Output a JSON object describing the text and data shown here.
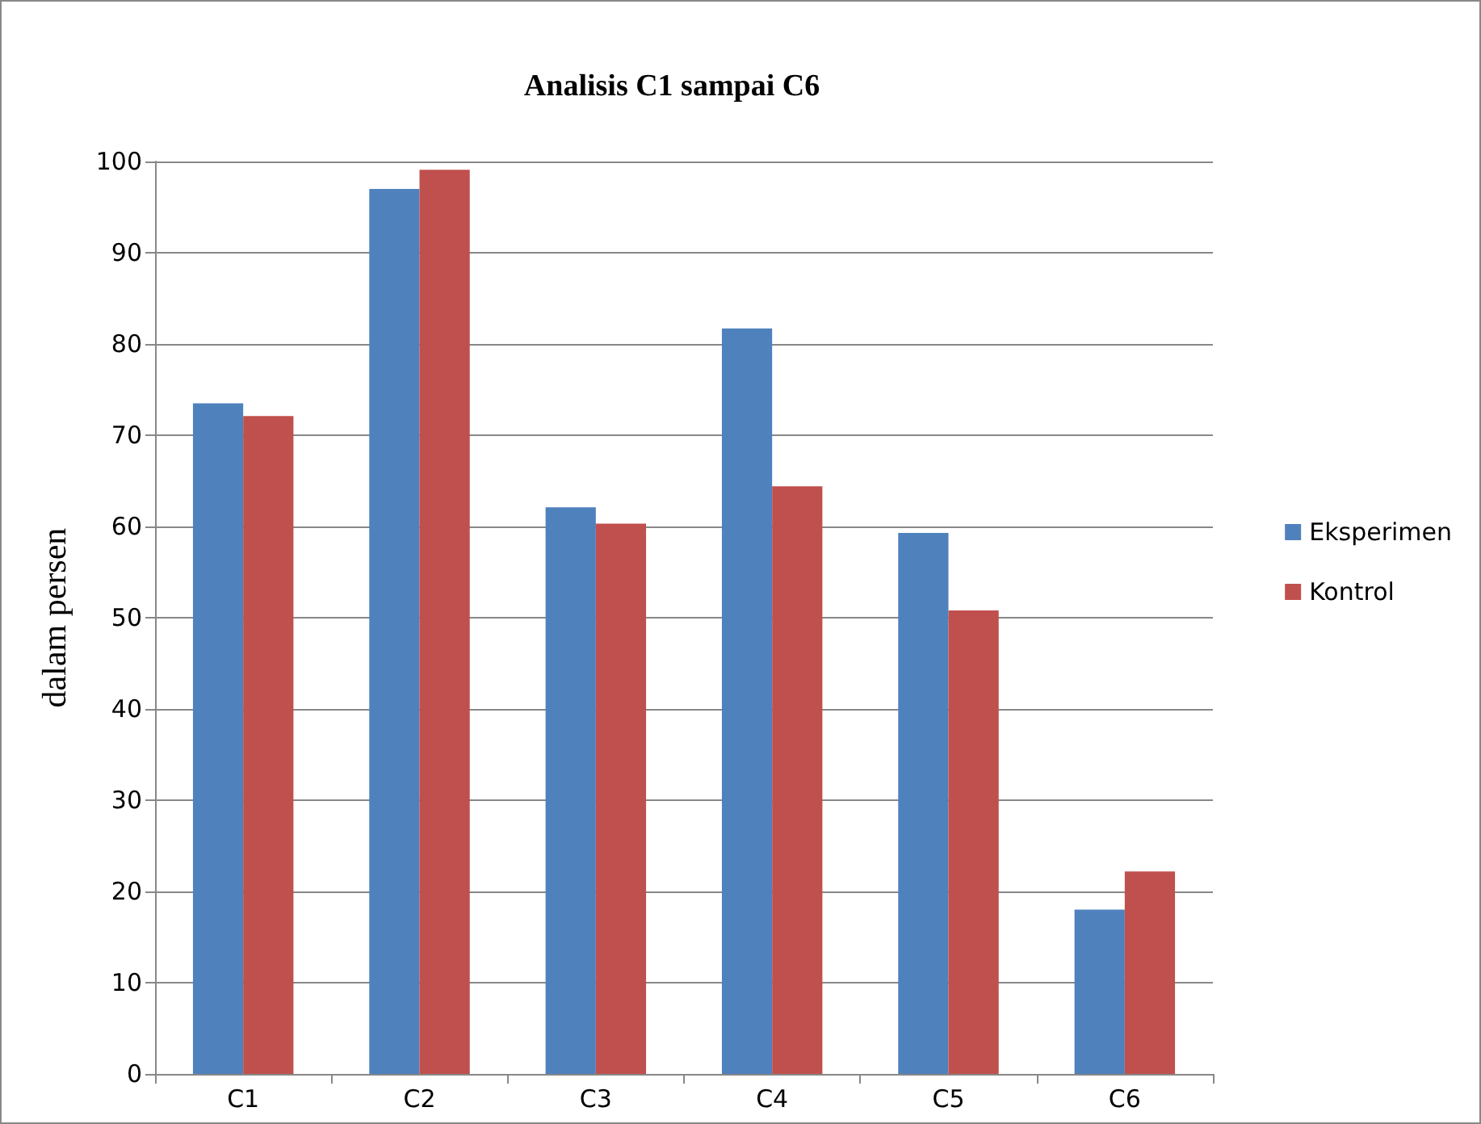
{
  "chart_data": {
    "type": "bar",
    "title": "Analisis C1 sampai C6",
    "ylabel": "dalam persen",
    "categories": [
      "C1",
      "C2",
      "C3",
      "C4",
      "C5",
      "C6"
    ],
    "series": [
      {
        "name": "Eksperimen",
        "color": "#4f81bd",
        "values": [
          73.5,
          97.0,
          62.1,
          81.7,
          59.3,
          18.0
        ]
      },
      {
        "name": "Kontrol",
        "color": "#c0504d",
        "values": [
          72.1,
          99.1,
          60.3,
          64.4,
          50.8,
          22.2
        ]
      }
    ],
    "ylim": [
      0,
      100
    ],
    "yticks": [
      0,
      10,
      20,
      30,
      40,
      50,
      60,
      70,
      80,
      90,
      100
    ],
    "grid": "y",
    "legend": "right"
  }
}
